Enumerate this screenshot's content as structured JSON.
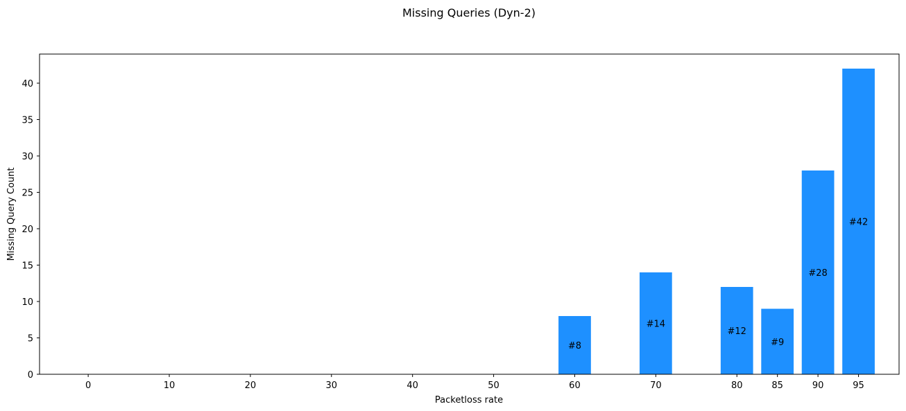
{
  "chart_data": {
    "type": "bar",
    "title": "Missing Queries (Dyn-2)",
    "xlabel": "Packetloss rate",
    "ylabel": "Missing Query Count",
    "x_ticks": [
      0,
      10,
      20,
      30,
      40,
      50,
      60,
      70,
      80,
      85,
      90,
      95
    ],
    "y_ticks": [
      0,
      5,
      10,
      15,
      20,
      25,
      30,
      35,
      40
    ],
    "xlim": [
      -6,
      100
    ],
    "ylim": [
      0,
      44
    ],
    "bar_color": "#1e90ff",
    "grid": false,
    "bars": [
      {
        "x": 60,
        "value": 8,
        "label": "#8"
      },
      {
        "x": 70,
        "value": 14,
        "label": "#14"
      },
      {
        "x": 80,
        "value": 12,
        "label": "#12"
      },
      {
        "x": 85,
        "value": 9,
        "label": "#9"
      },
      {
        "x": 90,
        "value": 28,
        "label": "#28"
      },
      {
        "x": 95,
        "value": 42,
        "label": "#42"
      }
    ]
  }
}
